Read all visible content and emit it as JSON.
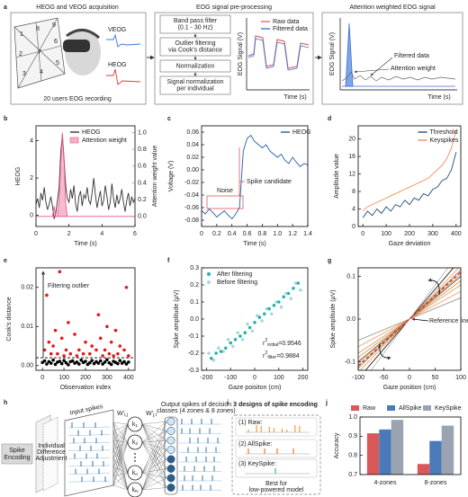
{
  "panel_a": {
    "panel": "a",
    "sections": [
      {
        "title": "HEOG and VEOG acquisition",
        "labels": [
          "VEOG",
          "HEOG"
        ],
        "caption": "20 users EOG recording",
        "zones": [
          "1",
          "2",
          "3",
          "4",
          "5",
          "6",
          "7",
          "8",
          "9"
        ]
      },
      {
        "title": "EOG signal pre-processing",
        "steps": [
          [
            "Band pass filter",
            "(0.1 - 30 Hz)"
          ],
          [
            "Outlier filtering",
            "via Cook's distance"
          ],
          [
            "Normalization"
          ],
          [
            "Signal normalization",
            "per individual"
          ]
        ],
        "legend": [
          "Raw data",
          "Filtered data"
        ],
        "y_label": "EOG Signal (V)",
        "x_label": "Time (s)"
      },
      {
        "title": "Attention weighted EOG signal",
        "labels": [
          "Filtered data",
          "Attention weight"
        ],
        "y_label": "EOG Signal (V)",
        "x_label": "Time (s)"
      }
    ]
  },
  "chart_data": [
    {
      "type": "line",
      "panel": "b",
      "x_label": "Time (s)",
      "y_label": "HEOG",
      "y2_label": "Attention weight value",
      "x": [
        0,
        0.1,
        0.2,
        0.3,
        0.4,
        0.5,
        0.6,
        0.7,
        0.8,
        0.9,
        1,
        1.1,
        1.2,
        1.3,
        1.4,
        1.5,
        1.6,
        1.7,
        1.8,
        1.9,
        2,
        2.1,
        2.2,
        2.3,
        2.4,
        2.5,
        2.6,
        2.7,
        2.8,
        2.9,
        3,
        3.1,
        3.2,
        3.3,
        3.4,
        3.5,
        3.6,
        3.7,
        3.8,
        3.9,
        4,
        4.1,
        4.2,
        4.3,
        4.4,
        4.5,
        4.6,
        4.7,
        4.8,
        4.9,
        5,
        5.1,
        5.2,
        5.3,
        5.4,
        5.5,
        5.6,
        5.7,
        5.8,
        5.9,
        6
      ],
      "series": [
        {
          "name": "HEOG",
          "color": "#333333",
          "values": [
            0.6,
            0.9,
            0.4,
            1.2,
            0.8,
            1.5,
            0.7,
            0.3,
            0.6,
            1.0,
            0.5,
            -0.2,
            0.1,
            0.8,
            1.5,
            3.4,
            4.3,
            3.0,
            1.6,
            0.9,
            0.7,
            1.4,
            0.9,
            1.6,
            0.6,
            0.2,
            1.0,
            1.3,
            0.5,
            1.1,
            0.9,
            1.5,
            0.8,
            0.6,
            1.2,
            2.0,
            1.1,
            0.4,
            0.9,
            1.3,
            0.5,
            0.8,
            1.6,
            1.0,
            0.3,
            0.7,
            1.7,
            0.9,
            0.4,
            1.1,
            0.6,
            0.9,
            1.4,
            0.7,
            0.2,
            0.8,
            1.2,
            0.5,
            1.0,
            0.7,
            0.9
          ]
        },
        {
          "name": "Attention weight",
          "color": "#e8508a",
          "fill": true,
          "axis": "y2",
          "values": [
            0,
            0,
            0,
            0,
            0,
            0,
            0,
            0,
            0,
            0,
            0,
            0.12,
            0,
            0,
            0.2,
            0.65,
            1.0,
            0.7,
            0.15,
            0,
            0,
            0,
            0,
            0,
            0,
            0,
            0,
            0,
            0,
            0,
            0,
            0,
            0,
            0,
            0,
            0,
            0,
            0,
            0,
            0,
            0,
            0,
            0,
            0,
            0,
            0,
            0,
            0,
            0,
            0,
            0,
            0,
            0,
            0,
            0,
            0,
            0,
            0,
            0,
            0,
            0
          ]
        }
      ],
      "xlim": [
        0,
        6
      ],
      "xticks": [
        0,
        2,
        4,
        6
      ],
      "ylim": [
        -0.6,
        4.8
      ],
      "yticks": [
        0,
        2,
        4
      ],
      "y2lim": [
        -0.12,
        1.08
      ],
      "y2ticks": [
        {
          "value": 0,
          "label": "0.0"
        },
        0.2,
        0.4,
        0.6,
        0.8,
        {
          "value": 1,
          "label": "1.0"
        }
      ],
      "legend": "upper right"
    },
    {
      "type": "line",
      "panel": "c",
      "x_label": "Time (s)",
      "y_label": "Voltage (V)",
      "x": [
        0,
        0.05,
        0.1,
        0.15,
        0.2,
        0.25,
        0.3,
        0.35,
        0.4,
        0.45,
        0.5,
        0.55,
        0.6,
        0.65,
        0.7,
        0.75,
        0.8,
        0.85,
        0.9,
        0.95,
        1,
        1.05,
        1.1,
        1.15,
        1.2,
        1.25,
        1.3,
        1.35,
        1.4
      ],
      "series": [
        {
          "name": "HEOG",
          "color": "#1f5fa8",
          "values": [
            -0.065,
            -0.07,
            -0.062,
            -0.068,
            -0.075,
            -0.07,
            -0.065,
            -0.072,
            -0.078,
            -0.07,
            -0.06,
            0.03,
            0.05,
            0.055,
            0.045,
            0.04,
            0.035,
            0.04,
            0.03,
            0.025,
            0.02,
            0.025,
            0.015,
            0.01,
            0.02,
            0.012,
            0.005,
            0.01,
            0.008
          ]
        }
      ],
      "xlim": [
        0,
        1.4
      ],
      "xticks": [
        0,
        0.2,
        0.4,
        0.6,
        0.8,
        {
          "value": 1,
          "label": "1.0"
        },
        1.2,
        1.4
      ],
      "ylim": [
        -0.09,
        0.07
      ],
      "yticks": [
        -0.08,
        -0.06,
        -0.04,
        -0.02,
        {
          "value": 0,
          "label": "0.00"
        },
        0.02,
        0.04,
        0.06
      ],
      "legend": "upper right",
      "annotations": [
        "Noise",
        "Spike candidate"
      ]
    },
    {
      "type": "line",
      "panel": "d",
      "x_label": "Gaze deviation",
      "y_label": "Amplitude value",
      "x": [
        0,
        20,
        40,
        60,
        80,
        100,
        120,
        140,
        160,
        180,
        200,
        220,
        240,
        260,
        280,
        300,
        320,
        340,
        360,
        380,
        400
      ],
      "series": [
        {
          "name": "Threshold",
          "color": "#1f4e79",
          "values": [
            2,
            3.5,
            2.5,
            4,
            3,
            4.5,
            3.5,
            5,
            4.5,
            6,
            5,
            6.5,
            6,
            7.5,
            7,
            8.5,
            9,
            10.5,
            11,
            13,
            17
          ]
        },
        {
          "name": "Keyspikes",
          "color": "#f28c52",
          "values": [
            3.5,
            4.5,
            5,
            5.5,
            6,
            6.5,
            7,
            7.5,
            8,
            8.5,
            9,
            9.5,
            10,
            10.5,
            11,
            12,
            13,
            14,
            15.5,
            18,
            22
          ]
        }
      ],
      "xlim": [
        -20,
        420
      ],
      "xticks": [
        0,
        100,
        200,
        300,
        400
      ],
      "ylim": [
        0,
        23
      ],
      "yticks": [
        0,
        4,
        8,
        12,
        16,
        20
      ],
      "legend": "upper right"
    },
    {
      "type": "scatter",
      "panel": "e",
      "x_label": "Observation index",
      "y_label": "Cook's distance",
      "series": [
        {
          "color": "#e31a1c",
          "x": [
            80,
            20,
            390,
            260,
            120,
            60,
            150,
            300,
            340,
            30,
            90,
            200,
            230,
            270,
            320,
            360,
            10,
            50,
            110,
            170,
            250,
            290,
            380,
            40,
            70,
            130,
            190,
            220,
            310,
            350,
            100,
            160,
            280,
            330,
            400
          ],
          "values": [
            0.024,
            0.018,
            0.02,
            0.013,
            0.011,
            0.009,
            0.008,
            0.01,
            0.009,
            0.006,
            0.007,
            0.006,
            0.005,
            0.007,
            0.006,
            0.005,
            0.004,
            0.005,
            0.004,
            0.004,
            0.004,
            0.004,
            0.004,
            0.003,
            0.003,
            0.003,
            0.003,
            0.003,
            0.003,
            0.003,
            0.0025,
            0.0025,
            0.0025,
            0.0025,
            0.0025
          ]
        },
        {
          "color": "#000000",
          "x": [
            0,
            10,
            20,
            30,
            40,
            50,
            60,
            70,
            80,
            90,
            100,
            110,
            120,
            130,
            140,
            150,
            160,
            170,
            180,
            190,
            200,
            210,
            220,
            230,
            240,
            250,
            260,
            270,
            280,
            290,
            300,
            310,
            320,
            330,
            340,
            350,
            360,
            370,
            380,
            390,
            400
          ],
          "values": [
            0.0008,
            0.0012,
            0.0004,
            0.001,
            0.0006,
            0.0014,
            0.0003,
            0.0009,
            0.0011,
            0.0005,
            0.0013,
            0.0007,
            0.0002,
            0.001,
            0.0012,
            0.0006,
            0.0009,
            0.0004,
            0.0014,
            0.0008,
            0.0011,
            0.0003,
            0.0007,
            0.0013,
            0.0005,
            0.001,
            0.0006,
            0.0012,
            0.0004,
            0.0009,
            0.0015,
            0.0007,
            0.0003,
            0.0011,
            0.0008,
            0.0005,
            0.0013,
            0.0006,
            0.001,
            0.0004,
            0.0009
          ]
        }
      ],
      "threshold": 0.002,
      "xlim": [
        -30,
        430
      ],
      "xticks": [
        0,
        100,
        200,
        300,
        400
      ],
      "ylim": [
        -0.0012,
        0.025
      ],
      "yticks": [
        {
          "value": 0,
          "label": "0.00"
        },
        0.01,
        0.02
      ],
      "annotations": [
        "Filtering outlier"
      ]
    },
    {
      "type": "scatter",
      "panel": "f",
      "x_label": "Gaze poisiton (cm)",
      "y_label": "Spike amplitude (μV)",
      "series": [
        {
          "name": "After filtering",
          "color": "#2ab0a8",
          "x": [
            -180,
            -160,
            -140,
            -120,
            -100,
            -80,
            -60,
            -40,
            -20,
            0,
            20,
            40,
            60,
            80,
            100,
            120,
            140,
            160,
            180
          ],
          "values": [
            -0.23,
            -0.2,
            -0.19,
            -0.17,
            -0.14,
            -0.12,
            -0.1,
            -0.08,
            -0.05,
            -0.02,
            0.01,
            0.03,
            0.06,
            0.08,
            0.1,
            0.13,
            0.15,
            0.18,
            0.21
          ]
        },
        {
          "name": "Before filtering",
          "color": "#a8d8dc",
          "x": [
            -190,
            -170,
            -150,
            -130,
            -110,
            -90,
            -70,
            -50,
            -30,
            -10,
            10,
            30,
            50,
            70,
            90,
            110,
            130,
            150,
            170,
            190
          ],
          "values": [
            -0.2,
            -0.24,
            -0.17,
            -0.19,
            -0.12,
            -0.16,
            -0.08,
            -0.12,
            -0.03,
            -0.07,
            0.02,
            -0.01,
            0.06,
            0.03,
            0.1,
            0.07,
            0.15,
            0.12,
            0.21,
            0.17
          ]
        }
      ],
      "xlim": [
        -220,
        220
      ],
      "xticks": [
        -200,
        -100,
        0,
        100,
        200
      ],
      "ylim": [
        -0.3,
        0.3
      ],
      "yticks": [
        -0.3,
        -0.2,
        -0.1,
        {
          "value": 0,
          "label": "0.0"
        },
        0.1,
        0.2,
        0.3
      ],
      "legend": "upper left",
      "annotations": [
        {
          "base": "r",
          "sup": "2",
          "sub": "initial",
          "text": "=0.9546"
        },
        {
          "base": "r",
          "sup": "2",
          "sub": "filter",
          "text": "=0.9884"
        }
      ]
    },
    {
      "type": "line",
      "panel": "g",
      "x_label": "Gaze position (cm)",
      "y_label": "Spike amplitude (μV)",
      "series": [
        {
          "color": "#999999",
          "x": [
            -100,
            100
          ],
          "values": [
            -0.05,
            0.05
          ]
        },
        {
          "color": "#f4a261",
          "x": [
            -100,
            100
          ],
          "values": [
            -0.065,
            0.065
          ]
        },
        {
          "color": "#c8a27a",
          "x": [
            -100,
            100
          ],
          "values": [
            -0.08,
            0.08
          ]
        },
        {
          "color": "#f08c3c",
          "x": [
            -100,
            100
          ],
          "values": [
            -0.09,
            0.09
          ]
        },
        {
          "color": "#555555",
          "x": [
            -100,
            100
          ],
          "values": [
            -0.1,
            0.1
          ]
        },
        {
          "color": "#e6b84c",
          "x": [
            -100,
            100
          ],
          "values": [
            -0.105,
            0.105
          ]
        },
        {
          "color": "#888888",
          "x": [
            -100,
            100
          ],
          "values": [
            -0.115,
            0.115
          ]
        },
        {
          "color": "#f0a050",
          "x": [
            -100,
            100
          ],
          "values": [
            -0.125,
            0.125
          ]
        },
        {
          "color": "#222222",
          "x": [
            -100,
            100
          ],
          "values": [
            -0.14,
            0.14
          ]
        },
        {
          "color": "#bbbbbb",
          "x": [
            -100,
            100
          ],
          "values": [
            -0.16,
            0.16
          ]
        },
        {
          "name": "Reference line",
          "color": "#e0312f",
          "style": "dashed",
          "x": [
            -100,
            100
          ],
          "values": [
            -0.11,
            0.11
          ]
        }
      ],
      "xlim": [
        -100,
        100
      ],
      "xticks": [
        -100,
        -50,
        0,
        50,
        100
      ],
      "ylim": [
        -0.12,
        0.12
      ],
      "yticks": [
        -0.1,
        {
          "value": 0,
          "label": "0.0"
        },
        0.1
      ]
    },
    {
      "type": "bar",
      "panel": "j",
      "y_label": "Accuracy",
      "categories": [
        "4-zones",
        "8-zones"
      ],
      "series": [
        {
          "name": "Raw",
          "color": "#d9595b",
          "values": [
            0.915,
            0.755
          ]
        },
        {
          "name": "AllSpike",
          "color": "#4a7ab8",
          "values": [
            0.935,
            0.875
          ]
        },
        {
          "name": "KeySpike",
          "color": "#9aa3b0",
          "values": [
            0.985,
            0.955
          ]
        }
      ],
      "ylim": [
        0.7,
        1.0
      ],
      "yticks": [
        0.7,
        0.8,
        0.9,
        {
          "value": 1,
          "label": "1.0"
        }
      ],
      "legend": "top"
    }
  ],
  "panel_h": {
    "panel": "h",
    "spike_encoding": [
      "Spike",
      "Encoding"
    ],
    "adjustment": [
      "Individual",
      "Difference",
      "Adjustment"
    ],
    "input": "Input spikes",
    "weights": [
      {
        "base": "W'",
        "sub": "i,j"
      },
      {
        "base": "W'",
        "sub": "j,l"
      }
    ],
    "hidden": [
      {
        "base": "k",
        "sub": "1"
      },
      {
        "base": "k",
        "sub": "2"
      },
      {
        "base": "k",
        "sub": "n"
      },
      {
        "base": "k",
        "sub": "N"
      }
    ],
    "output": [
      "Output spikes of decision",
      "classes (4 zones & 8 zones)"
    ]
  },
  "panel_i": {
    "panel": "i",
    "title": "3 designs of spike encoding",
    "designs": [
      "(1) Raw:",
      "(2) AllSpike:",
      "(3) KeySpike:"
    ],
    "note": [
      "Best for",
      "low-powered model"
    ]
  }
}
